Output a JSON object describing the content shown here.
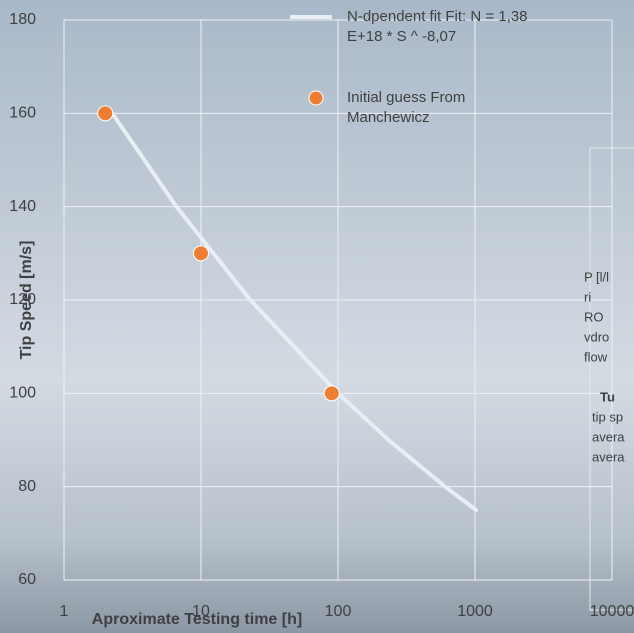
{
  "chart_data": {
    "type": "scatter",
    "x_label": "Aproximate Testing time [h]",
    "y_label": "Tip Speed [m/s]",
    "xscale": "log",
    "xlim": [
      1,
      10000
    ],
    "xticks": [
      1,
      10,
      100,
      1000,
      10000
    ],
    "ylim": [
      60,
      180
    ],
    "yticks": [
      60,
      80,
      100,
      120,
      140,
      160,
      180
    ],
    "grid": true,
    "series": [
      {
        "name": "N-dpendent fit Fit: N = 1,38 E+18  * S ^ -8,07",
        "type": "line",
        "color": "#e9eef4",
        "x": [
          2.25,
          6.62,
          22.9,
          100,
          234,
          605,
          1018
        ],
        "values": [
          160,
          140,
          120,
          100,
          90,
          80,
          75
        ]
      },
      {
        "name": "Initial guess From Manchewicz",
        "type": "scatter",
        "color": "#ed7d31",
        "x": [
          2,
          10,
          90
        ],
        "values": [
          160,
          130,
          100
        ]
      }
    ]
  },
  "side_panel": {
    "lines": [
      "P [l/l",
      "ri",
      "RO",
      "vdro",
      "flow",
      "Tu",
      "tip sp",
      "avera",
      "avera"
    ]
  }
}
